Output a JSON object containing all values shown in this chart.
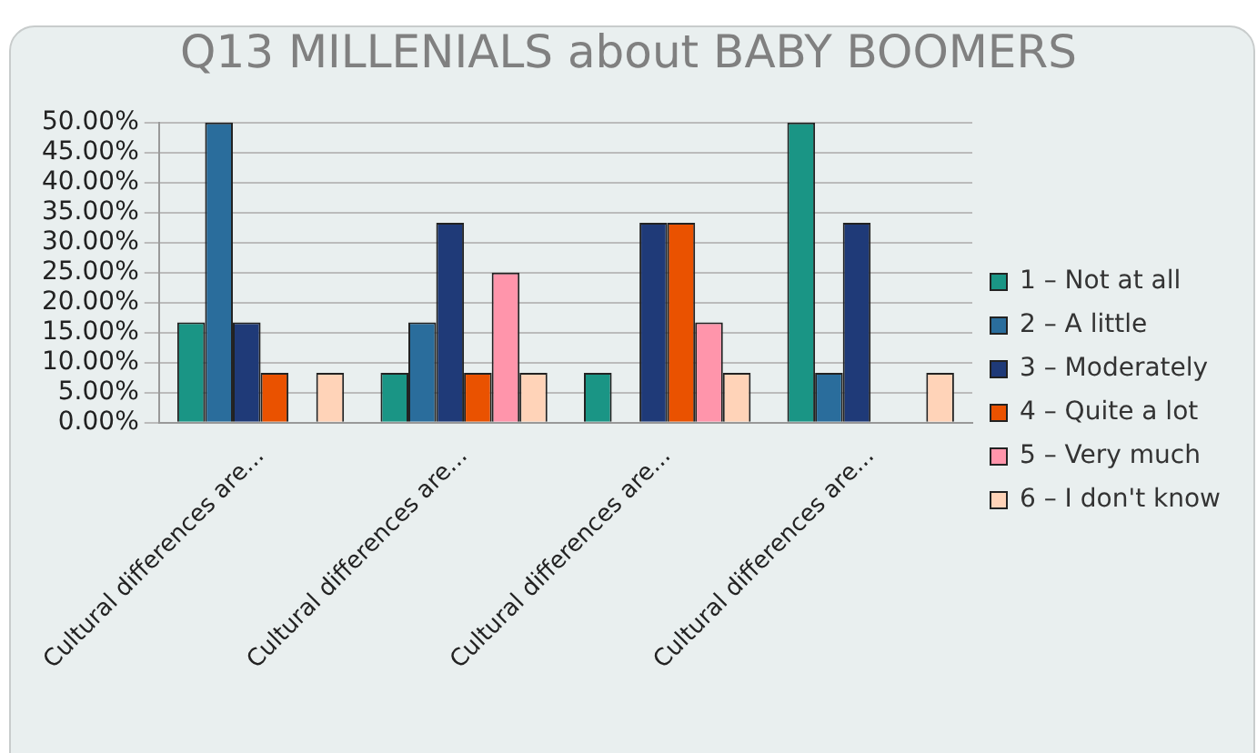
{
  "chart_data": {
    "type": "bar",
    "title": "Q13 MILLENIALS about BABY BOOMERS",
    "categories": [
      "Cultural differences are...",
      "Cultural differences are...",
      "Cultural differences are...",
      "Cultural differences are..."
    ],
    "series": [
      {
        "name": "1 – Not at all",
        "color": "#1a9585",
        "values": [
          16.7,
          8.3,
          8.3,
          50
        ]
      },
      {
        "name": "2 – A little",
        "color": "#2a6d9c",
        "values": [
          50,
          16.7,
          0,
          8.3
        ]
      },
      {
        "name": "3 – Moderately",
        "color": "#1f3a78",
        "values": [
          16.7,
          33.3,
          33.3,
          33.3
        ]
      },
      {
        "name": "4 – Quite a lot",
        "color": "#ea5200",
        "values": [
          8.3,
          8.3,
          33.3,
          0
        ]
      },
      {
        "name": "5 – Very much",
        "color": "#ff95ab",
        "values": [
          0,
          25,
          16.7,
          0
        ]
      },
      {
        "name": "6 – I don't know",
        "color": "#ffd3b8",
        "values": [
          8.3,
          8.3,
          8.3,
          8.3
        ]
      }
    ],
    "ylim": [
      0,
      50
    ],
    "yticks": [
      {
        "value": 0,
        "label": "0.00%"
      },
      {
        "value": 5,
        "label": "5.00%"
      },
      {
        "value": 10,
        "label": "10.00%"
      },
      {
        "value": 15,
        "label": "15.00%"
      },
      {
        "value": 20,
        "label": "20.00%"
      },
      {
        "value": 25,
        "label": "25.00%"
      },
      {
        "value": 30,
        "label": "30.00%"
      },
      {
        "value": 35,
        "label": "35.00%"
      },
      {
        "value": 40,
        "label": "40.00%"
      },
      {
        "value": 45,
        "label": "45.00%"
      },
      {
        "value": 50,
        "label": "50.00%"
      }
    ],
    "grid": "y",
    "legend": "right"
  }
}
